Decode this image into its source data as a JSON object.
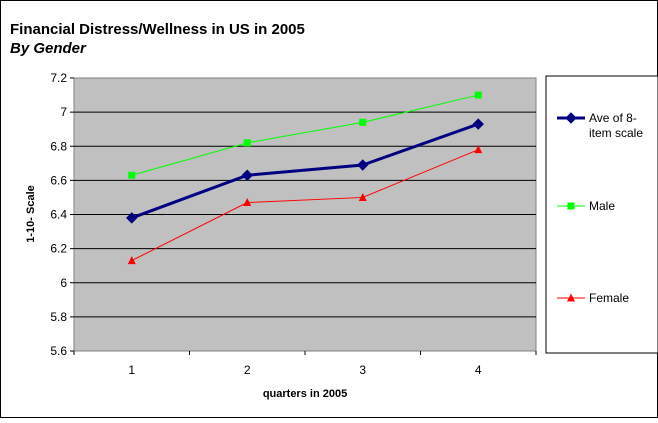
{
  "chart_data": {
    "type": "line",
    "title": "Financial Distress/Wellness in US in 2005",
    "subtitle": "By Gender",
    "xlabel": "quarters in 2005",
    "ylabel": "1-10- Scale",
    "categories": [
      "1",
      "2",
      "3",
      "4"
    ],
    "ylim": [
      5.6,
      7.2
    ],
    "yticks": [
      "7.2",
      "7",
      "6.8",
      "6.6",
      "6.4",
      "6.2",
      "6",
      "5.8",
      "5.6"
    ],
    "grid": true,
    "legend_position": "right",
    "plot_background": "#c0c0c0",
    "series": [
      {
        "name": "Ave of 8-item scale",
        "legend_lines": [
          "Ave of 8-",
          "item scale"
        ],
        "color": "#000080",
        "marker": "diamond",
        "values": [
          6.38,
          6.63,
          6.69,
          6.93
        ]
      },
      {
        "name": "Male",
        "legend_lines": [
          "Male"
        ],
        "color": "#00ff00",
        "marker": "square",
        "values": [
          6.63,
          6.82,
          6.94,
          7.1
        ]
      },
      {
        "name": "Female",
        "legend_lines": [
          "Female"
        ],
        "color": "#ff0000",
        "marker": "triangle",
        "values": [
          6.13,
          6.47,
          6.5,
          6.78
        ]
      }
    ]
  }
}
